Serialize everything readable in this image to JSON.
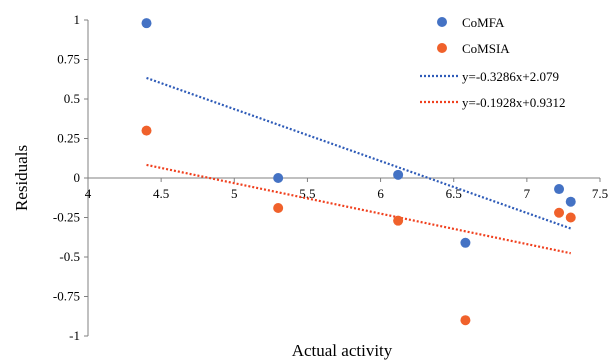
{
  "chart_data": {
    "type": "scatter",
    "title": "",
    "xlabel": "Actual activity",
    "ylabel": "Residuals",
    "xlim": [
      4,
      7.5
    ],
    "ylim": [
      -1,
      1
    ],
    "x_ticks": [
      4,
      4.5,
      5,
      5.5,
      6,
      6.5,
      7,
      7.5
    ],
    "x_tick_labels": [
      "4",
      "4.5",
      "5",
      "5.5",
      "6",
      "6.5",
      "7",
      "7.5"
    ],
    "y_ticks": [
      1,
      0.75,
      0.5,
      0.25,
      0,
      -0.25,
      -0.5,
      -0.75,
      -1
    ],
    "y_tick_labels": [
      "1",
      "0.75",
      "0.5",
      "0.25",
      "0",
      "-0.25",
      "-0.5",
      "-0.75",
      "-1"
    ],
    "grid": false,
    "legend_position": "top-right",
    "series": [
      {
        "name": "CoMFA",
        "color": "#4472C4",
        "points": [
          {
            "x": 4.4,
            "y": 0.98
          },
          {
            "x": 5.3,
            "y": 0.0
          },
          {
            "x": 6.12,
            "y": 0.02
          },
          {
            "x": 6.58,
            "y": -0.41
          },
          {
            "x": 7.22,
            "y": -0.07
          },
          {
            "x": 7.3,
            "y": -0.15
          }
        ],
        "trendline": {
          "label": "y=-0.3286x+2.079",
          "slope": -0.3286,
          "intercept": 2.079,
          "color": "#2E5BB8",
          "x_range": [
            4.4,
            7.3
          ]
        }
      },
      {
        "name": "CoMSIA",
        "color": "#F0612B",
        "points": [
          {
            "x": 4.4,
            "y": 0.3
          },
          {
            "x": 5.3,
            "y": -0.19
          },
          {
            "x": 6.12,
            "y": -0.27
          },
          {
            "x": 6.58,
            "y": -0.9
          },
          {
            "x": 7.22,
            "y": -0.22
          },
          {
            "x": 7.3,
            "y": -0.25
          }
        ],
        "trendline": {
          "label": "y=-0.1928x+0.9312",
          "slope": -0.1928,
          "intercept": 0.9312,
          "color": "#F0401E",
          "x_range": [
            4.4,
            7.3
          ]
        }
      }
    ]
  }
}
